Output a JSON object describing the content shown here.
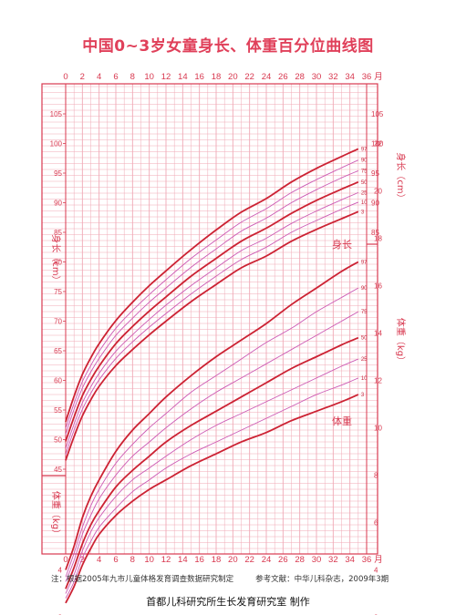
{
  "title": "中国0~3岁女童身长、体重百分位曲线图",
  "note": "注：根据2005年九市儿童体格发育调查数据研究制定",
  "reference": "参考文献：中华儿科杂志，2009年3期",
  "credit": "首都儿科研究所生长发育研究室  制作",
  "month_unit": "月",
  "chart_data": {
    "type": "line",
    "xlim": [
      0,
      36
    ],
    "x_ticks": [
      0,
      2,
      4,
      6,
      8,
      10,
      12,
      14,
      16,
      18,
      20,
      22,
      24,
      26,
      28,
      30,
      32,
      34,
      36
    ],
    "grid": true,
    "percentiles": [
      "3",
      "10",
      "25",
      "50",
      "75",
      "90",
      "97"
    ],
    "height": {
      "name": "身长",
      "axis_label": "身长（cm）",
      "ylim": [
        44,
        106
      ],
      "y_ticks": [
        45,
        50,
        55,
        60,
        65,
        70,
        75,
        80,
        85,
        90,
        95,
        100,
        105
      ],
      "right_y_ticks": [
        85,
        90,
        95,
        100,
        105
      ],
      "x": [
        0,
        1,
        2,
        3,
        4,
        6,
        8,
        10,
        12,
        15,
        18,
        21,
        24,
        27,
        30,
        33,
        35
      ],
      "series": [
        {
          "name": "3",
          "values": [
            46.5,
            50.5,
            54.0,
            56.7,
            59.0,
            62.5,
            65.2,
            67.7,
            70.0,
            73.3,
            76.2,
            79.0,
            81.0,
            83.5,
            85.5,
            87.3,
            88.5
          ]
        },
        {
          "name": "10",
          "values": [
            47.5,
            51.6,
            55.1,
            57.8,
            60.1,
            63.7,
            66.5,
            69.0,
            71.3,
            74.6,
            77.6,
            80.4,
            82.5,
            85.0,
            87.0,
            88.9,
            90.1
          ]
        },
        {
          "name": "25",
          "values": [
            48.5,
            52.6,
            56.2,
            58.9,
            61.2,
            64.9,
            67.7,
            70.3,
            72.7,
            76.0,
            79.0,
            81.9,
            84.0,
            86.5,
            88.6,
            90.5,
            91.7
          ]
        },
        {
          "name": "50",
          "values": [
            49.7,
            53.8,
            57.4,
            60.1,
            62.4,
            66.2,
            69.1,
            71.7,
            74.1,
            77.6,
            80.6,
            83.5,
            85.7,
            88.2,
            90.4,
            92.3,
            93.5
          ]
        },
        {
          "name": "75",
          "values": [
            50.9,
            55.1,
            58.7,
            61.4,
            63.7,
            67.6,
            70.5,
            73.2,
            75.6,
            79.1,
            82.2,
            85.2,
            87.4,
            90.0,
            92.2,
            94.2,
            95.4
          ]
        },
        {
          "name": "90",
          "values": [
            51.9,
            56.1,
            59.8,
            62.5,
            64.9,
            68.8,
            71.8,
            74.5,
            77.0,
            80.6,
            83.7,
            86.7,
            89.0,
            91.7,
            93.9,
            95.9,
            97.2
          ]
        },
        {
          "name": "97",
          "values": [
            53.0,
            57.3,
            61.0,
            63.8,
            66.2,
            70.1,
            73.2,
            76.0,
            78.5,
            82.1,
            85.4,
            88.4,
            90.7,
            93.5,
            95.8,
            97.8,
            99.1
          ]
        }
      ]
    },
    "weight": {
      "name": "体重",
      "axis_label": "体重（kg）",
      "ylim": [
        0.7,
        22.6
      ],
      "left_y_ticks": [
        2,
        4
      ],
      "right_y_ticks": [
        2,
        4,
        6,
        8,
        10,
        12,
        14,
        16,
        18,
        20,
        22
      ],
      "x": [
        0,
        1,
        2,
        3,
        4,
        6,
        8,
        10,
        12,
        15,
        18,
        21,
        24,
        27,
        30,
        33,
        35
      ],
      "series": [
        {
          "name": "3",
          "values": [
            2.6,
            3.3,
            4.2,
            4.9,
            5.5,
            6.3,
            6.9,
            7.4,
            7.8,
            8.4,
            8.9,
            9.4,
            9.8,
            10.3,
            10.7,
            11.1,
            11.4
          ]
        },
        {
          "name": "10",
          "values": [
            2.8,
            3.5,
            4.5,
            5.2,
            5.8,
            6.6,
            7.3,
            7.8,
            8.3,
            8.9,
            9.4,
            9.9,
            10.4,
            10.9,
            11.4,
            11.8,
            12.1
          ]
        },
        {
          "name": "25",
          "values": [
            3.0,
            3.8,
            4.8,
            5.6,
            6.2,
            7.1,
            7.8,
            8.3,
            8.8,
            9.5,
            10.1,
            10.6,
            11.1,
            11.6,
            12.1,
            12.6,
            12.9
          ]
        },
        {
          "name": "50",
          "values": [
            3.2,
            4.1,
            5.1,
            5.9,
            6.5,
            7.5,
            8.2,
            8.8,
            9.4,
            10.1,
            10.7,
            11.3,
            11.9,
            12.5,
            13.0,
            13.5,
            13.8
          ]
        },
        {
          "name": "75",
          "values": [
            3.5,
            4.4,
            5.5,
            6.3,
            7.0,
            8.0,
            8.8,
            9.4,
            10.0,
            10.8,
            11.5,
            12.1,
            12.7,
            13.3,
            13.9,
            14.5,
            14.9
          ]
        },
        {
          "name": "90",
          "values": [
            3.7,
            4.7,
            5.8,
            6.7,
            7.4,
            8.5,
            9.3,
            10.0,
            10.6,
            11.5,
            12.2,
            12.9,
            13.6,
            14.2,
            14.9,
            15.5,
            15.9
          ]
        },
        {
          "name": "97",
          "values": [
            4.0,
            5.0,
            6.2,
            7.1,
            7.8,
            9.0,
            9.9,
            10.6,
            11.3,
            12.2,
            13.0,
            13.7,
            14.4,
            15.2,
            15.9,
            16.6,
            17.0
          ]
        }
      ]
    },
    "colors": {
      "frame": "#d8384f",
      "major_line": "#cc2233",
      "minor_line": "#cc5ab4",
      "grid_line": "#f0a9b6"
    }
  }
}
